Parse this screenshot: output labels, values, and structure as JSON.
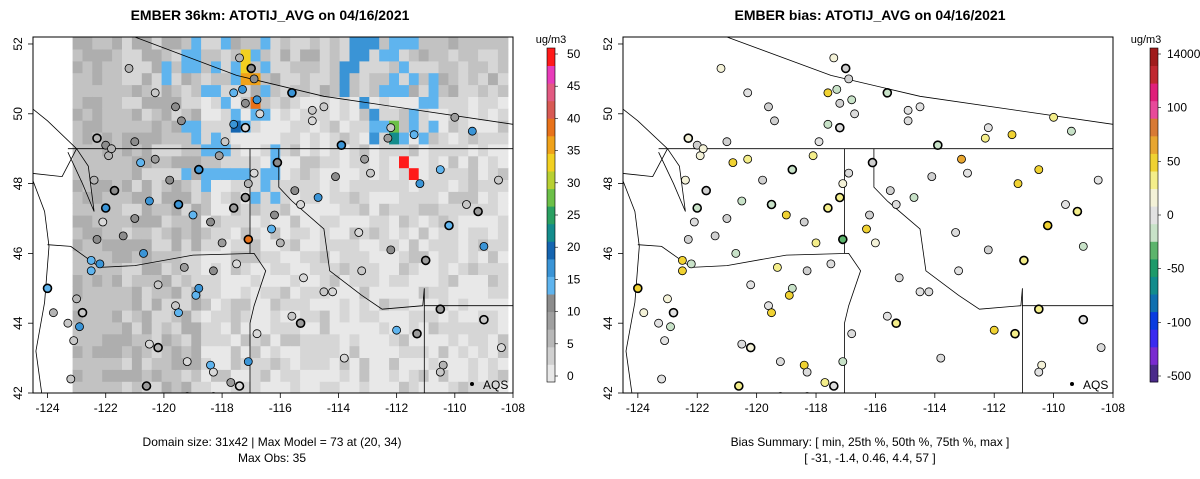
{
  "chart_data": [
    {
      "type": "heatmap",
      "title": "EMBER 36km: ATOTIJ_AVG on 04/16/2021",
      "xlim": [
        -124.5,
        -108
      ],
      "ylim": [
        42,
        52.2
      ],
      "x_ticks": [
        "-124",
        "-122",
        "-120",
        "-118",
        "-116",
        "-114",
        "-112",
        "-110",
        "-108"
      ],
      "y_ticks": [
        "42",
        "44",
        "46",
        "48",
        "50",
        "52"
      ],
      "colorbar": {
        "unit": "ug/m3",
        "labels": [
          "0",
          "5",
          "10",
          "15",
          "20",
          "25",
          "30",
          "35",
          "40",
          "45",
          "50"
        ],
        "colors": [
          "#e8e8e8",
          "#d0d0d0",
          "#b8b8b8",
          "#a0a0a0",
          "#8c8c8c",
          "#5fb4ee",
          "#3a94d6",
          "#1565b0",
          "#148c8c",
          "#2aa062",
          "#6cc048",
          "#b8d032",
          "#f2d021",
          "#f0a21a",
          "#e8721a",
          "#d85a54",
          "#e25a82",
          "#e83cba",
          "#ff1a1a"
        ]
      },
      "station_label": "AQS",
      "footer_lines": [
        "Domain size: 31x42 | Max Model = 73 at (20, 34)",
        "Max Obs: 35"
      ],
      "grid": false
    },
    {
      "type": "scatter",
      "title": "EMBER bias: ATOTIJ_AVG on 04/16/2021",
      "xlim": [
        -124.5,
        -108
      ],
      "ylim": [
        42,
        52.2
      ],
      "x_ticks": [
        "-124",
        "-122",
        "-120",
        "-118",
        "-116",
        "-114",
        "-112",
        "-110",
        "-108"
      ],
      "y_ticks": [
        "42",
        "44",
        "46",
        "48",
        "50",
        "52"
      ],
      "colorbar": {
        "unit": "ug/m3",
        "labels": [
          "14000",
          "100",
          "50",
          "0",
          "-50",
          "-100",
          "-500"
        ],
        "colors": [
          "#a01c1c",
          "#c02830",
          "#e0207a",
          "#e84a9a",
          "#d87a34",
          "#e8a630",
          "#f0d232",
          "#f4ee8a",
          "#f4f2d8",
          "#e2e2e2",
          "#c8e2c8",
          "#5cb46c",
          "#1e9a6a",
          "#128c8c",
          "#1070b0",
          "#0a3ce0",
          "#3a2af0",
          "#7a2ad0",
          "#4a2a8a"
        ]
      },
      "station_label": "AQS",
      "footer_lines": [
        "Bias Summary: [ min, 25th %, 50th %, 75th %, max ]",
        "[ -31,  -1.4,  0.46,  4.4,  57 ]"
      ],
      "bias_summary": {
        "min": -31,
        "p25": -1.4,
        "p50": 0.46,
        "p75": 4.4,
        "max": 57
      },
      "grid": false
    }
  ]
}
